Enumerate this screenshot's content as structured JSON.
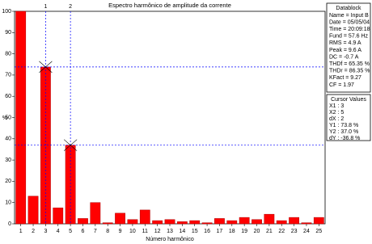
{
  "chart_data": {
    "type": "bar",
    "title": "Espectro harmônico de amplitude da corrente",
    "x_label": "Número harmônico",
    "y_label": "%",
    "categories": [
      "1",
      "2",
      "3",
      "4",
      "5",
      "6",
      "7",
      "8",
      "9",
      "10",
      "11",
      "12",
      "13",
      "14",
      "15",
      "16",
      "17",
      "18",
      "19",
      "20",
      "21",
      "22",
      "23",
      "24",
      "25"
    ],
    "values": [
      100,
      13,
      73.8,
      7.5,
      37,
      2.5,
      10,
      0.5,
      5,
      2,
      6.5,
      1.5,
      2,
      1,
      1.5,
      0.5,
      2.5,
      1.5,
      3,
      2,
      4.5,
      1.5,
      3,
      0.5,
      3
    ],
    "color": "#ff0000",
    "ylim": [
      0,
      100
    ],
    "yticks": [
      0,
      10,
      20,
      30,
      40,
      50,
      60,
      70,
      80,
      90,
      100
    ],
    "cursors": [
      {
        "label": "1",
        "x": 3,
        "y": 73.8
      },
      {
        "label": "2",
        "x": 5,
        "y": 37
      }
    ]
  },
  "datablock": {
    "title": "Datablock",
    "lines": [
      "Name = Input B",
      "Date = 05/05/04",
      "Time = 20:09:18",
      "Fund = 57.6 Hz",
      "RMS = 4.9 A",
      "Peak = 9.6 A",
      "DC = -0.7 A",
      "THDf = 65.35 %",
      "THDr = 86.35 %",
      "KFact = 9.27",
      "CF = 1.97"
    ]
  },
  "cursor_values": {
    "title": "Cursor Values",
    "lines": [
      "X1 : 3",
      "X2 : 5",
      "dX : 2",
      "Y1 : 73.8 %",
      "Y2 : 37.0 %",
      "dY : -36.8 %"
    ]
  }
}
